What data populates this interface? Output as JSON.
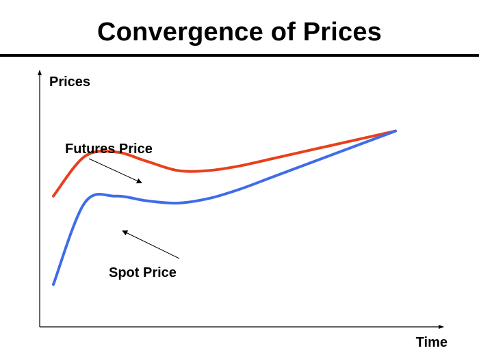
{
  "slide": {
    "title": "Convergence of Prices"
  },
  "chart_data": {
    "type": "line",
    "title": "Convergence of Prices",
    "xlabel": "Time",
    "ylabel": "Prices",
    "grid": false,
    "legend": "none",
    "annotations": [
      "Futures Price",
      "Spot Price"
    ],
    "series": [
      {
        "name": "Futures Price",
        "color": "#e8401c",
        "x": [
          0,
          1,
          2,
          3,
          4,
          5,
          6,
          7,
          8,
          9,
          10,
          11
        ],
        "values": [
          4.8,
          6.5,
          6.7,
          6.3,
          5.9,
          5.9,
          6.1,
          6.4,
          6.7,
          7.0,
          7.3,
          7.6
        ]
      },
      {
        "name": "Spot Price",
        "color": "#3f6ce8",
        "x": [
          0,
          1,
          2,
          3,
          4,
          5,
          6,
          7,
          8,
          9,
          10,
          11
        ],
        "values": [
          1.0,
          4.5,
          4.8,
          4.6,
          4.5,
          4.7,
          5.1,
          5.6,
          6.1,
          6.6,
          7.1,
          7.6
        ]
      }
    ],
    "colors": {
      "futures": "#e8401c",
      "spot": "#3f6ce8",
      "axis": "#000000"
    }
  }
}
